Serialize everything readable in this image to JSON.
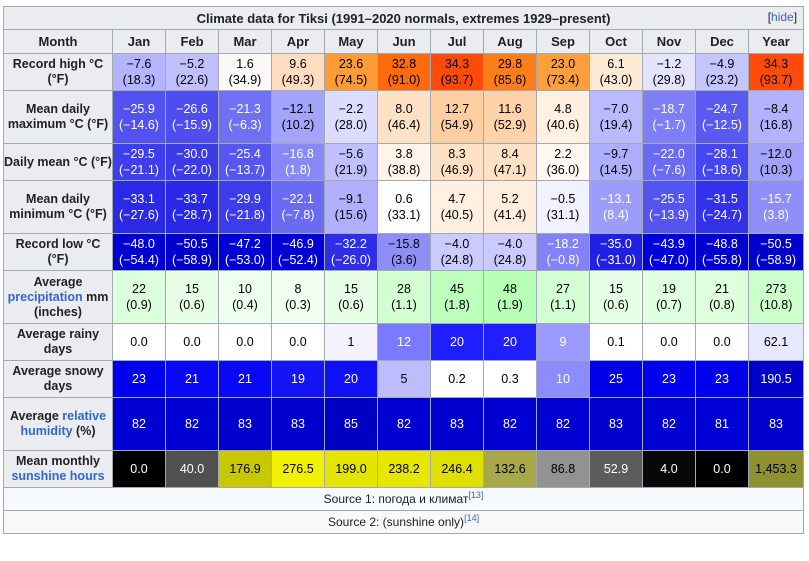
{
  "caption": "Climate data for Tiksi (1991–2020 normals, extremes 1929–present)",
  "hide_label": "hide",
  "header": [
    "Month",
    "Jan",
    "Feb",
    "Mar",
    "Apr",
    "May",
    "Jun",
    "Jul",
    "Aug",
    "Sep",
    "Oct",
    "Nov",
    "Dec",
    "Year"
  ],
  "rows": [
    {
      "label": [
        {
          "t": "Record high °C (°F)"
        }
      ],
      "height": 37,
      "cells": [
        {
          "l1": "−7.6",
          "l2": "(18.3)",
          "bg": "#b4b4ff",
          "fg": "#000000"
        },
        {
          "l1": "−5.2",
          "l2": "(22.6)",
          "bg": "#c0c0ff",
          "fg": "#000000"
        },
        {
          "l1": "1.6",
          "l2": "(34.9)",
          "bg": "#fbf8f8",
          "fg": "#000000"
        },
        {
          "l1": "9.6",
          "l2": "(49.3)",
          "bg": "#ffddbe",
          "fg": "#000000"
        },
        {
          "l1": "23.6",
          "l2": "(74.5)",
          "bg": "#ff9c38",
          "fg": "#000000"
        },
        {
          "l1": "32.8",
          "l2": "(91.0)",
          "bg": "#ff6a0c",
          "fg": "#000000"
        },
        {
          "l1": "34.3",
          "l2": "(93.7)",
          "bg": "#ff4a0a",
          "fg": "#000000"
        },
        {
          "l1": "29.8",
          "l2": "(85.6)",
          "bg": "#ff7e1a",
          "fg": "#000000"
        },
        {
          "l1": "23.0",
          "l2": "(73.4)",
          "bg": "#ff9f3c",
          "fg": "#000000"
        },
        {
          "l1": "6.1",
          "l2": "(43.0)",
          "bg": "#ffead6",
          "fg": "#000000"
        },
        {
          "l1": "−1.2",
          "l2": "(29.8)",
          "bg": "#e4e4ff",
          "fg": "#000000"
        },
        {
          "l1": "−4.9",
          "l2": "(23.2)",
          "bg": "#c4c4ff",
          "fg": "#000000"
        },
        {
          "l1": "34.3",
          "l2": "(93.7)",
          "bg": "#ff4a0a",
          "fg": "#000000"
        }
      ]
    },
    {
      "label": [
        {
          "t": "Mean daily maximum °C (°F)"
        }
      ],
      "height": 53,
      "cells": [
        {
          "l1": "−25.9",
          "l2": "(−14.6)",
          "bg": "#5252f0",
          "fg": "#ffffff"
        },
        {
          "l1": "−26.6",
          "l2": "(−15.9)",
          "bg": "#4e4eee",
          "fg": "#ffffff"
        },
        {
          "l1": "−21.3",
          "l2": "(−6.3)",
          "bg": "#7070f4",
          "fg": "#ffffff"
        },
        {
          "l1": "−12.1",
          "l2": "(10.2)",
          "bg": "#a4a4fc",
          "fg": "#000000"
        },
        {
          "l1": "−2.2",
          "l2": "(28.0)",
          "bg": "#dcdcff",
          "fg": "#000000"
        },
        {
          "l1": "8.0",
          "l2": "(46.4)",
          "bg": "#ffe2c6",
          "fg": "#000000"
        },
        {
          "l1": "12.7",
          "l2": "(54.9)",
          "bg": "#ffcfa2",
          "fg": "#000000"
        },
        {
          "l1": "11.6",
          "l2": "(52.9)",
          "bg": "#ffd3aa",
          "fg": "#000000"
        },
        {
          "l1": "4.8",
          "l2": "(40.6)",
          "bg": "#fff0e2",
          "fg": "#000000"
        },
        {
          "l1": "−7.0",
          "l2": "(19.4)",
          "bg": "#babaff",
          "fg": "#000000"
        },
        {
          "l1": "−18.7",
          "l2": "(−1.7)",
          "bg": "#7e7ef6",
          "fg": "#ffffff"
        },
        {
          "l1": "−24.7",
          "l2": "(−12.5)",
          "bg": "#5a5af0",
          "fg": "#ffffff"
        },
        {
          "l1": "−8.4",
          "l2": "(16.8)",
          "bg": "#b2b2ff",
          "fg": "#000000"
        }
      ]
    },
    {
      "label": [
        {
          "t": "Daily mean °C (°F)"
        }
      ],
      "height": 37,
      "cells": [
        {
          "l1": "−29.5",
          "l2": "(−21.1)",
          "bg": "#3e3eec",
          "fg": "#ffffff"
        },
        {
          "l1": "−30.0",
          "l2": "(−22.0)",
          "bg": "#3b3bea",
          "fg": "#ffffff"
        },
        {
          "l1": "−25.4",
          "l2": "(−13.7)",
          "bg": "#5656f0",
          "fg": "#ffffff"
        },
        {
          "l1": "−16.8",
          "l2": "(1.8)",
          "bg": "#8888f8",
          "fg": "#ffffff"
        },
        {
          "l1": "−5.6",
          "l2": "(21.9)",
          "bg": "#c0c0ff",
          "fg": "#000000"
        },
        {
          "l1": "3.8",
          "l2": "(38.8)",
          "bg": "#fff4ea",
          "fg": "#000000"
        },
        {
          "l1": "8.3",
          "l2": "(46.9)",
          "bg": "#ffe2c6",
          "fg": "#000000"
        },
        {
          "l1": "8.4",
          "l2": "(47.1)",
          "bg": "#ffe2c6",
          "fg": "#000000"
        },
        {
          "l1": "2.2",
          "l2": "(36.0)",
          "bg": "#fff8f2",
          "fg": "#000000"
        },
        {
          "l1": "−9.7",
          "l2": "(14.5)",
          "bg": "#aeaefe",
          "fg": "#000000"
        },
        {
          "l1": "−22.0",
          "l2": "(−7.6)",
          "bg": "#6a6af2",
          "fg": "#ffffff"
        },
        {
          "l1": "−28.1",
          "l2": "(−18.6)",
          "bg": "#4646ee",
          "fg": "#ffffff"
        },
        {
          "l1": "−12.0",
          "l2": "(10.3)",
          "bg": "#a2a2fc",
          "fg": "#000000"
        }
      ]
    },
    {
      "label": [
        {
          "t": "Mean daily minimum °C (°F)"
        }
      ],
      "height": 53,
      "cells": [
        {
          "l1": "−33.1",
          "l2": "(−27.6)",
          "bg": "#2a2ae6",
          "fg": "#ffffff"
        },
        {
          "l1": "−33.7",
          "l2": "(−28.7)",
          "bg": "#2828e6",
          "fg": "#ffffff"
        },
        {
          "l1": "−29.9",
          "l2": "(−21.8)",
          "bg": "#3c3cea",
          "fg": "#ffffff"
        },
        {
          "l1": "−22.1",
          "l2": "(−7.8)",
          "bg": "#6a6af2",
          "fg": "#ffffff"
        },
        {
          "l1": "−9.1",
          "l2": "(15.6)",
          "bg": "#b0b0fe",
          "fg": "#000000"
        },
        {
          "l1": "0.6",
          "l2": "(33.1)",
          "bg": "#fdfdfd",
          "fg": "#000000"
        },
        {
          "l1": "4.7",
          "l2": "(40.5)",
          "bg": "#fff0e2",
          "fg": "#000000"
        },
        {
          "l1": "5.2",
          "l2": "(41.4)",
          "bg": "#ffeede",
          "fg": "#000000"
        },
        {
          "l1": "−0.5",
          "l2": "(31.1)",
          "bg": "#f2f2ff",
          "fg": "#000000"
        },
        {
          "l1": "−13.1",
          "l2": "(8.4)",
          "bg": "#9c9cfa",
          "fg": "#ffffff"
        },
        {
          "l1": "−25.5",
          "l2": "(−13.9)",
          "bg": "#5454f0",
          "fg": "#ffffff"
        },
        {
          "l1": "−31.5",
          "l2": "(−24.7)",
          "bg": "#3232e8",
          "fg": "#ffffff"
        },
        {
          "l1": "−15.7",
          "l2": "(3.8)",
          "bg": "#8e8ef8",
          "fg": "#ffffff"
        }
      ]
    },
    {
      "label": [
        {
          "t": "Record low °C (°F)"
        }
      ],
      "height": 37,
      "cells": [
        {
          "l1": "−48.0",
          "l2": "(−54.4)",
          "bg": "#0000d2",
          "fg": "#ffffff"
        },
        {
          "l1": "−50.5",
          "l2": "(−58.9)",
          "bg": "#0000cc",
          "fg": "#ffffff"
        },
        {
          "l1": "−47.2",
          "l2": "(−53.0)",
          "bg": "#0000d4",
          "fg": "#ffffff"
        },
        {
          "l1": "−46.9",
          "l2": "(−52.4)",
          "bg": "#0000d6",
          "fg": "#ffffff"
        },
        {
          "l1": "−32.2",
          "l2": "(−26.0)",
          "bg": "#2e2ee8",
          "fg": "#ffffff"
        },
        {
          "l1": "−15.8",
          "l2": "(3.6)",
          "bg": "#8e8ef8",
          "fg": "#000000"
        },
        {
          "l1": "−4.0",
          "l2": "(24.8)",
          "bg": "#cacaff",
          "fg": "#000000"
        },
        {
          "l1": "−4.0",
          "l2": "(24.8)",
          "bg": "#cacaff",
          "fg": "#000000"
        },
        {
          "l1": "−18.2",
          "l2": "(−0.8)",
          "bg": "#8282f6",
          "fg": "#ffffff"
        },
        {
          "l1": "−35.0",
          "l2": "(−31.0)",
          "bg": "#2020e4",
          "fg": "#ffffff"
        },
        {
          "l1": "−43.9",
          "l2": "(−47.0)",
          "bg": "#0000dc",
          "fg": "#ffffff"
        },
        {
          "l1": "−48.8",
          "l2": "(−55.8)",
          "bg": "#0000d0",
          "fg": "#ffffff"
        },
        {
          "l1": "−50.5",
          "l2": "(−58.9)",
          "bg": "#0000cc",
          "fg": "#ffffff"
        }
      ]
    },
    {
      "label": [
        {
          "t": "Average ",
          "link": false
        },
        {
          "t": "precipitation",
          "link": true
        },
        {
          "t": " mm (inches)",
          "link": false
        }
      ],
      "height": 53,
      "cells": [
        {
          "l1": "22",
          "l2": "(0.9)",
          "bg": "#dcffdc",
          "fg": "#000000"
        },
        {
          "l1": "15",
          "l2": "(0.6)",
          "bg": "#e6ffe6",
          "fg": "#000000"
        },
        {
          "l1": "10",
          "l2": "(0.4)",
          "bg": "#eeffee",
          "fg": "#000000"
        },
        {
          "l1": "8",
          "l2": "(0.3)",
          "bg": "#f0fff0",
          "fg": "#000000"
        },
        {
          "l1": "15",
          "l2": "(0.6)",
          "bg": "#e6ffe6",
          "fg": "#000000"
        },
        {
          "l1": "28",
          "l2": "(1.1)",
          "bg": "#d2ffd2",
          "fg": "#000000"
        },
        {
          "l1": "45",
          "l2": "(1.8)",
          "bg": "#bcffbc",
          "fg": "#000000"
        },
        {
          "l1": "48",
          "l2": "(1.9)",
          "bg": "#b8ffb8",
          "fg": "#000000"
        },
        {
          "l1": "27",
          "l2": "(1.1)",
          "bg": "#d4ffd4",
          "fg": "#000000"
        },
        {
          "l1": "15",
          "l2": "(0.6)",
          "bg": "#e6ffe6",
          "fg": "#000000"
        },
        {
          "l1": "19",
          "l2": "(0.7)",
          "bg": "#e0ffe0",
          "fg": "#000000"
        },
        {
          "l1": "21",
          "l2": "(0.8)",
          "bg": "#deffde",
          "fg": "#000000"
        },
        {
          "l1": "273",
          "l2": "(10.8)",
          "bg": "#ccffcc",
          "fg": "#000000"
        }
      ]
    },
    {
      "label": [
        {
          "t": "Average rainy days"
        }
      ],
      "height": 37,
      "cells": [
        {
          "l1": "0.0",
          "l2": "",
          "bg": "#ffffff",
          "fg": "#000000"
        },
        {
          "l1": "0.0",
          "l2": "",
          "bg": "#ffffff",
          "fg": "#000000"
        },
        {
          "l1": "0.0",
          "l2": "",
          "bg": "#ffffff",
          "fg": "#000000"
        },
        {
          "l1": "0.0",
          "l2": "",
          "bg": "#ffffff",
          "fg": "#000000"
        },
        {
          "l1": "1",
          "l2": "",
          "bg": "#f4f4ff",
          "fg": "#000000"
        },
        {
          "l1": "12",
          "l2": "",
          "bg": "#7a7aff",
          "fg": "#ffffff"
        },
        {
          "l1": "20",
          "l2": "",
          "bg": "#1e1eff",
          "fg": "#ffffff"
        },
        {
          "l1": "20",
          "l2": "",
          "bg": "#1e1eff",
          "fg": "#ffffff"
        },
        {
          "l1": "9",
          "l2": "",
          "bg": "#9a9aff",
          "fg": "#ffffff"
        },
        {
          "l1": "0.1",
          "l2": "",
          "bg": "#ffffff",
          "fg": "#000000"
        },
        {
          "l1": "0.0",
          "l2": "",
          "bg": "#ffffff",
          "fg": "#000000"
        },
        {
          "l1": "0.0",
          "l2": "",
          "bg": "#ffffff",
          "fg": "#000000"
        },
        {
          "l1": "62.1",
          "l2": "",
          "bg": "#e8e8ff",
          "fg": "#000000"
        }
      ]
    },
    {
      "label": [
        {
          "t": "Average snowy days"
        }
      ],
      "height": 37,
      "cells": [
        {
          "l1": "23",
          "l2": "",
          "bg": "#0000ee",
          "fg": "#ffffff"
        },
        {
          "l1": "21",
          "l2": "",
          "bg": "#0808f4",
          "fg": "#ffffff"
        },
        {
          "l1": "21",
          "l2": "",
          "bg": "#0808f4",
          "fg": "#ffffff"
        },
        {
          "l1": "19",
          "l2": "",
          "bg": "#1414f6",
          "fg": "#ffffff"
        },
        {
          "l1": "20",
          "l2": "",
          "bg": "#1010f6",
          "fg": "#ffffff"
        },
        {
          "l1": "5",
          "l2": "",
          "bg": "#bcbcff",
          "fg": "#000000"
        },
        {
          "l1": "0.2",
          "l2": "",
          "bg": "#ffffff",
          "fg": "#000000"
        },
        {
          "l1": "0.3",
          "l2": "",
          "bg": "#ffffff",
          "fg": "#000000"
        },
        {
          "l1": "10",
          "l2": "",
          "bg": "#8c8cff",
          "fg": "#ffffff"
        },
        {
          "l1": "25",
          "l2": "",
          "bg": "#0000e6",
          "fg": "#ffffff"
        },
        {
          "l1": "23",
          "l2": "",
          "bg": "#0000ee",
          "fg": "#ffffff"
        },
        {
          "l1": "23",
          "l2": "",
          "bg": "#0000ee",
          "fg": "#ffffff"
        },
        {
          "l1": "190.5",
          "l2": "",
          "bg": "#0000c8",
          "fg": "#ffffff"
        }
      ]
    },
    {
      "label": [
        {
          "t": "Average ",
          "link": false
        },
        {
          "t": "relative humidity",
          "link": true
        },
        {
          "t": " (%)",
          "link": false
        }
      ],
      "height": 53,
      "cells": [
        {
          "l1": "82",
          "l2": "",
          "bg": "#0000d2",
          "fg": "#ffffff"
        },
        {
          "l1": "82",
          "l2": "",
          "bg": "#0000d2",
          "fg": "#ffffff"
        },
        {
          "l1": "83",
          "l2": "",
          "bg": "#0000ce",
          "fg": "#ffffff"
        },
        {
          "l1": "83",
          "l2": "",
          "bg": "#0000ce",
          "fg": "#ffffff"
        },
        {
          "l1": "85",
          "l2": "",
          "bg": "#0000c4",
          "fg": "#ffffff"
        },
        {
          "l1": "82",
          "l2": "",
          "bg": "#0000d2",
          "fg": "#ffffff"
        },
        {
          "l1": "83",
          "l2": "",
          "bg": "#0000ce",
          "fg": "#ffffff"
        },
        {
          "l1": "82",
          "l2": "",
          "bg": "#0000d2",
          "fg": "#ffffff"
        },
        {
          "l1": "82",
          "l2": "",
          "bg": "#0000d2",
          "fg": "#ffffff"
        },
        {
          "l1": "83",
          "l2": "",
          "bg": "#0000ce",
          "fg": "#ffffff"
        },
        {
          "l1": "82",
          "l2": "",
          "bg": "#0000d2",
          "fg": "#ffffff"
        },
        {
          "l1": "81",
          "l2": "",
          "bg": "#0000d6",
          "fg": "#ffffff"
        },
        {
          "l1": "83",
          "l2": "",
          "bg": "#0000ce",
          "fg": "#ffffff"
        }
      ]
    },
    {
      "label": [
        {
          "t": "Mean monthly ",
          "link": false
        },
        {
          "t": "sunshine hours",
          "link": true
        }
      ],
      "height": 37,
      "cells": [
        {
          "l1": "0.0",
          "l2": "",
          "bg": "#000000",
          "fg": "#ffffff"
        },
        {
          "l1": "40.0",
          "l2": "",
          "bg": "#505050",
          "fg": "#ffffff"
        },
        {
          "l1": "176.9",
          "l2": "",
          "bg": "#c8c800",
          "fg": "#000000"
        },
        {
          "l1": "276.5",
          "l2": "",
          "bg": "#f0f000",
          "fg": "#000000"
        },
        {
          "l1": "199.0",
          "l2": "",
          "bg": "#e4e400",
          "fg": "#000000"
        },
        {
          "l1": "238.2",
          "l2": "",
          "bg": "#e6e600",
          "fg": "#000000"
        },
        {
          "l1": "246.4",
          "l2": "",
          "bg": "#e0e000",
          "fg": "#000000"
        },
        {
          "l1": "132.6",
          "l2": "",
          "bg": "#a8a84a",
          "fg": "#000000"
        },
        {
          "l1": "86.8",
          "l2": "",
          "bg": "#929292",
          "fg": "#000000"
        },
        {
          "l1": "52.9",
          "l2": "",
          "bg": "#5c5c5c",
          "fg": "#ffffff"
        },
        {
          "l1": "4.0",
          "l2": "",
          "bg": "#080808",
          "fg": "#ffffff"
        },
        {
          "l1": "0.0",
          "l2": "",
          "bg": "#000000",
          "fg": "#ffffff"
        },
        {
          "l1": "1,453.3",
          "l2": "",
          "bg": "#909030",
          "fg": "#000000"
        }
      ]
    }
  ],
  "sources": [
    {
      "text": "Source 1: погода и климат",
      "ref": "[13]"
    },
    {
      "text": "Source 2: (sunshine only)",
      "ref": "[14]"
    }
  ]
}
